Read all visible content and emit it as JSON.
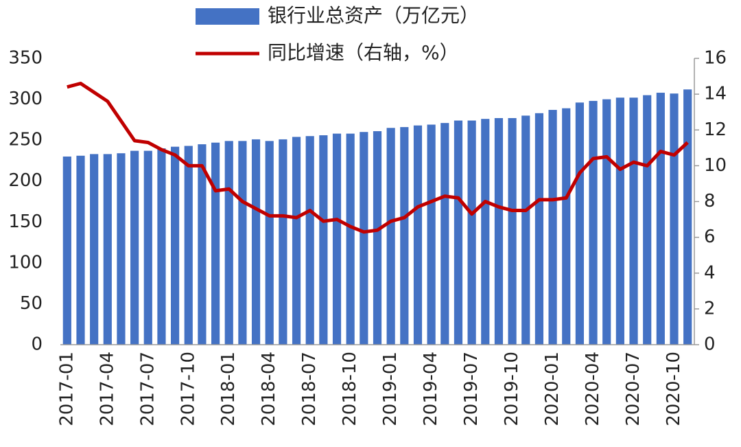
{
  "chart_data": {
    "type": "bar_line",
    "categories": [
      "2017-01",
      null,
      null,
      "2017-04",
      null,
      null,
      "2017-07",
      null,
      null,
      "2017-10",
      null,
      null,
      "2018-01",
      null,
      null,
      "2018-04",
      null,
      null,
      "2018-07",
      null,
      null,
      "2018-10",
      null,
      null,
      "2019-01",
      null,
      null,
      "2019-04",
      null,
      null,
      "2019-07",
      null,
      null,
      "2019-10",
      null,
      null,
      "2020-01",
      null,
      null,
      "2020-04",
      null,
      null,
      "2020-07",
      null,
      null,
      "2020-10",
      null
    ],
    "series": [
      {
        "name": "银行业总资产（万亿元）",
        "color": "#4472c4",
        "type": "bar",
        "values": [
          230,
          231,
          233,
          233,
          234,
          237,
          237,
          240,
          242,
          243,
          245,
          247,
          249,
          249,
          251,
          249,
          251,
          254,
          255,
          256,
          258,
          258,
          260,
          261,
          265,
          266,
          268,
          269,
          271,
          274,
          274,
          276,
          277,
          277,
          280,
          283,
          287,
          289,
          296,
          298,
          300,
          302,
          302,
          305,
          308,
          307,
          312
        ]
      },
      {
        "name": "同比增速（右轴，%）",
        "color": "#c00000",
        "type": "line",
        "axis": "y2",
        "values": [
          14.4,
          14.6,
          14.1,
          13.6,
          12.5,
          11.4,
          11.3,
          10.9,
          10.6,
          10.0,
          10.0,
          8.6,
          8.7,
          8.0,
          7.6,
          7.2,
          7.2,
          7.1,
          7.5,
          6.9,
          7.0,
          6.6,
          6.3,
          6.4,
          6.9,
          7.1,
          7.7,
          8.0,
          8.3,
          8.2,
          7.3,
          8.0,
          7.7,
          7.5,
          7.5,
          8.1,
          8.1,
          8.2,
          9.6,
          10.4,
          10.5,
          9.8,
          10.2,
          10.0,
          10.8,
          10.6,
          11.3
        ]
      }
    ],
    "ylim": [
      0,
      350
    ],
    "yticks": [
      0,
      50,
      100,
      150,
      200,
      250,
      300,
      350
    ],
    "y2lim": [
      0,
      16
    ],
    "y2ticks": [
      0,
      2,
      4,
      6,
      8,
      10,
      12,
      14,
      16
    ]
  }
}
